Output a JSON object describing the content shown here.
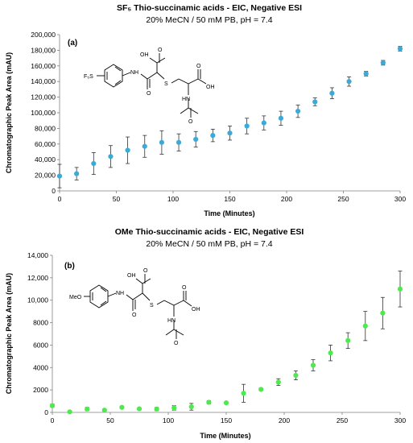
{
  "chart_data": [
    {
      "type": "scatter",
      "title": "SF₅ Thio-succinamic acids - EIC, Negative ESI",
      "subtitle": "20% MeCN / 50 mM PB, pH = 7.4",
      "panel_label": "(a)",
      "xlabel": "Time (Minutes)",
      "ylabel": "Chromatographic Peak Area  (mAU)",
      "xlim": [
        0,
        300
      ],
      "ylim": [
        0,
        200000
      ],
      "xticks": [
        "0",
        "50",
        "100",
        "150",
        "200",
        "250",
        "300"
      ],
      "yticks": [
        "0",
        "20,000",
        "40,000",
        "60,000",
        "80,000",
        "100,000",
        "120,000",
        "140,000",
        "160,000",
        "180,000",
        "200,000"
      ],
      "color": "#3aaad6",
      "grid": false,
      "molecule_labels": [
        "F₅S",
        "NH",
        "OH",
        "O",
        "O",
        "S",
        "OH",
        "O",
        "HN",
        "O"
      ],
      "series": [
        {
          "x": [
            0,
            15,
            30,
            45,
            60,
            75,
            90,
            105,
            120,
            135,
            150,
            165,
            180,
            195,
            210,
            225,
            240,
            255,
            270,
            285,
            300
          ],
          "y": [
            19000,
            22000,
            35000,
            44000,
            52000,
            57000,
            62000,
            62000,
            66000,
            71000,
            74000,
            83000,
            87000,
            93000,
            102000,
            114000,
            125000,
            140000,
            150000,
            164000,
            182000
          ],
          "err": [
            15000,
            8000,
            14000,
            14000,
            17000,
            14000,
            15000,
            11000,
            10000,
            8000,
            9000,
            10000,
            9000,
            9000,
            8000,
            5000,
            7000,
            6000,
            3000,
            3000,
            3000
          ]
        }
      ]
    },
    {
      "type": "scatter",
      "title": "OMe Thio-succinamic acids - EIC, Negative ESI",
      "subtitle": "20% MeCN / 50 mM PB, pH = 7.4",
      "panel_label": "(b)",
      "xlabel": "Time (Minutes)",
      "ylabel": "Chromatographic Peak Area (mAU)",
      "xlim": [
        0,
        300
      ],
      "ylim": [
        0,
        14000
      ],
      "xticks": [
        "0",
        "50",
        "100",
        "150",
        "200",
        "250",
        "300"
      ],
      "yticks": [
        "0",
        "2000",
        "4000",
        "6000",
        "8000",
        "10,000",
        "12,000",
        "14,000"
      ],
      "color": "#4cea4c",
      "grid": false,
      "molecule_labels": [
        "MeO",
        "NH",
        "OH",
        "O",
        "O",
        "S",
        "OH",
        "O",
        "HN",
        "O"
      ],
      "series": [
        {
          "x": [
            0,
            15,
            30,
            45,
            60,
            75,
            90,
            105,
            120,
            135,
            150,
            165,
            180,
            195,
            210,
            225,
            240,
            255,
            270,
            285,
            300
          ],
          "y": [
            600,
            50,
            300,
            200,
            450,
            320,
            300,
            400,
            500,
            900,
            850,
            1700,
            2050,
            2700,
            3300,
            4200,
            5300,
            6400,
            7700,
            8850,
            11000
          ],
          "err": [
            150,
            80,
            150,
            100,
            100,
            100,
            150,
            200,
            300,
            150,
            100,
            800,
            100,
            300,
            400,
            500,
            700,
            700,
            1300,
            1400,
            1600
          ]
        }
      ]
    }
  ]
}
